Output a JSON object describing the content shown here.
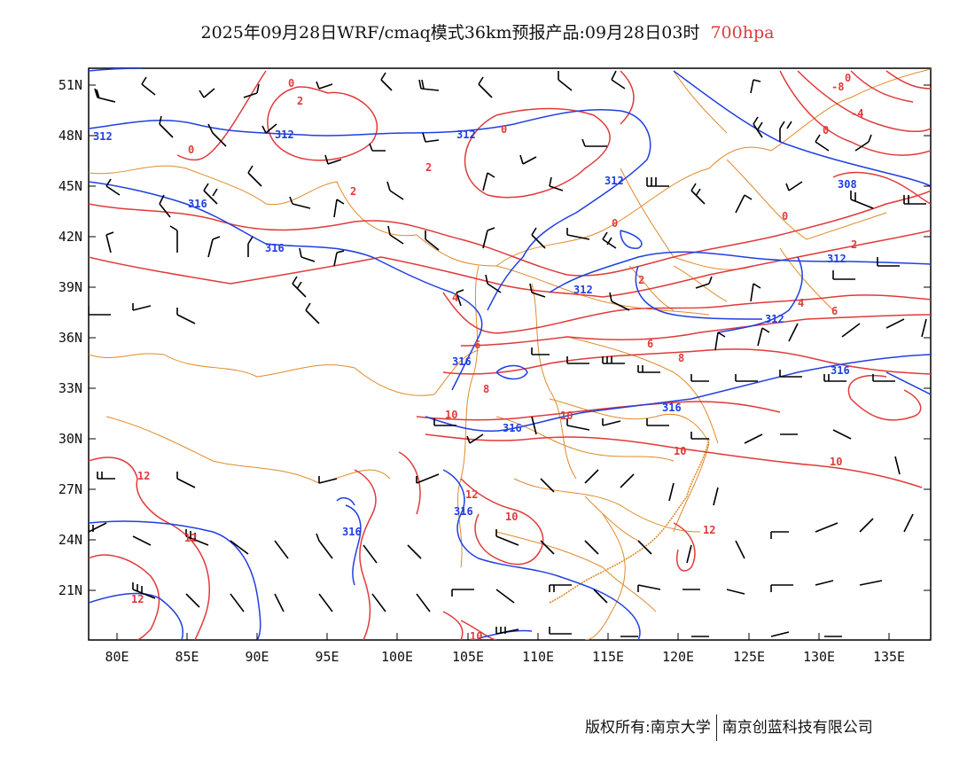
{
  "title": {
    "main": "2025年09月28日WRF/cmaq模式36km预报产品:09月28日03时",
    "level": "700hpa"
  },
  "colors": {
    "temperature_contour": "#e03a3a",
    "height_contour": "#1f3fe0",
    "boundaries": "#e08a2a",
    "wind_barb": "#000000"
  },
  "axes": {
    "lat_labels": [
      "51N",
      "48N",
      "45N",
      "42N",
      "39N",
      "36N",
      "33N",
      "30N",
      "27N",
      "24N",
      "21N"
    ],
    "lon_labels": [
      "80E",
      "85E",
      "90E",
      "95E",
      "100E",
      "105E",
      "110E",
      "115E",
      "120E",
      "125E",
      "130E",
      "135E"
    ]
  },
  "contour_labels": {
    "temperature": [
      "0",
      "2",
      "0",
      "2",
      "2",
      "0",
      "0",
      "0",
      "-4",
      "0",
      "0",
      "-8",
      "2",
      "2",
      "4",
      "6",
      "6",
      "8",
      "4",
      "6",
      "8",
      "10",
      "10",
      "10",
      "10",
      "12",
      "10",
      "12",
      "12",
      "12",
      "12",
      "10"
    ],
    "height": [
      "312",
      "312",
      "312",
      "312",
      "316",
      "316",
      "312",
      "308",
      "312",
      "312",
      "316",
      "316",
      "316",
      "316",
      "316",
      "316"
    ]
  },
  "footer": {
    "copyright": "版权所有:南京大学",
    "company": "南京创蓝科技有限公司"
  }
}
